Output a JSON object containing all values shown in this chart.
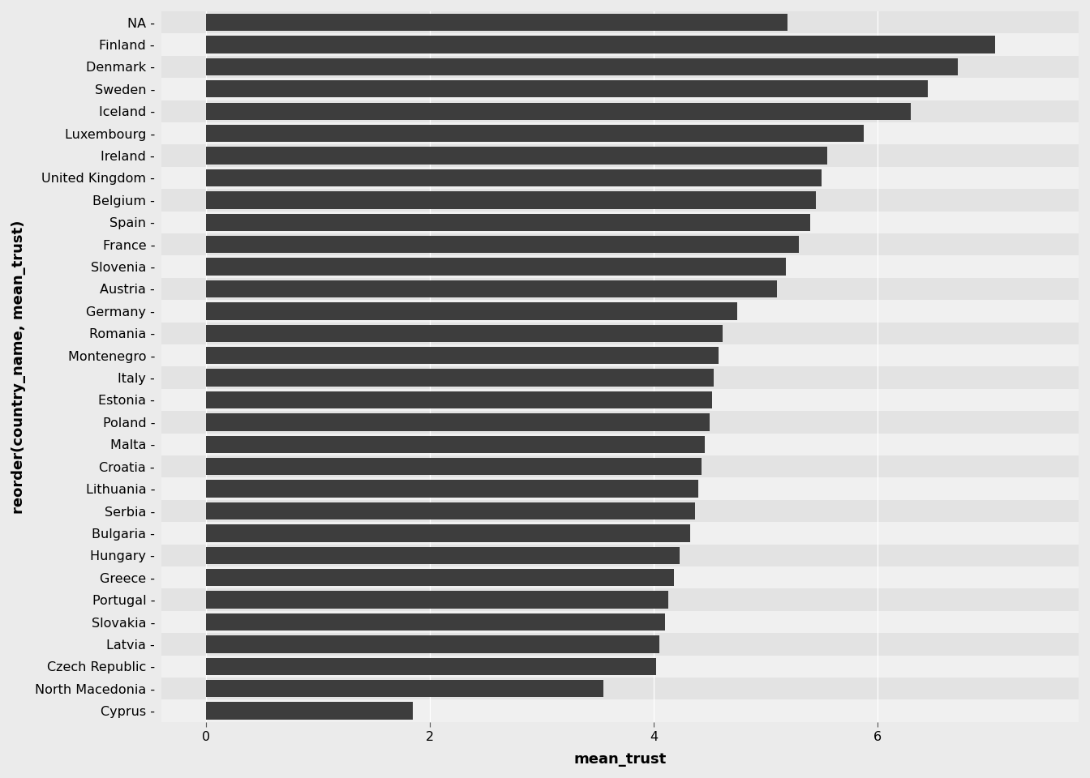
{
  "countries": [
    "Cyprus",
    "North Macedonia",
    "Czech Republic",
    "Latvia",
    "Slovakia",
    "Portugal",
    "Greece",
    "Hungary",
    "Bulgaria",
    "Serbia",
    "Lithuania",
    "Croatia",
    "Malta",
    "Poland",
    "Estonia",
    "Italy",
    "Montenegro",
    "Romania",
    "Germany",
    "Austria",
    "Slovenia",
    "France",
    "Spain",
    "Belgium",
    "United Kingdom",
    "Ireland",
    "Luxembourg",
    "Iceland",
    "Sweden",
    "Denmark",
    "Finland",
    "NA"
  ],
  "values": [
    1.85,
    3.55,
    4.02,
    4.05,
    4.1,
    4.13,
    4.18,
    4.23,
    4.33,
    4.37,
    4.4,
    4.43,
    4.46,
    4.5,
    4.52,
    4.54,
    4.58,
    4.62,
    4.75,
    5.1,
    5.18,
    5.3,
    5.4,
    5.45,
    5.5,
    5.55,
    5.88,
    6.3,
    6.45,
    6.72,
    7.05,
    5.2
  ],
  "bar_color": "#3d3d3d",
  "background_color": "#ebebeb",
  "panel_color_light": "#f0f0f0",
  "panel_color_dark": "#e3e3e3",
  "grid_color": "#ffffff",
  "xlabel": "mean_trust",
  "ylabel": "reorder(country_name, mean_trust)",
  "xlim": [
    -0.4,
    7.8
  ],
  "xticks": [
    0,
    2,
    4,
    6
  ],
  "axis_fontsize": 13,
  "tick_fontsize": 11.5,
  "bar_height": 0.78
}
